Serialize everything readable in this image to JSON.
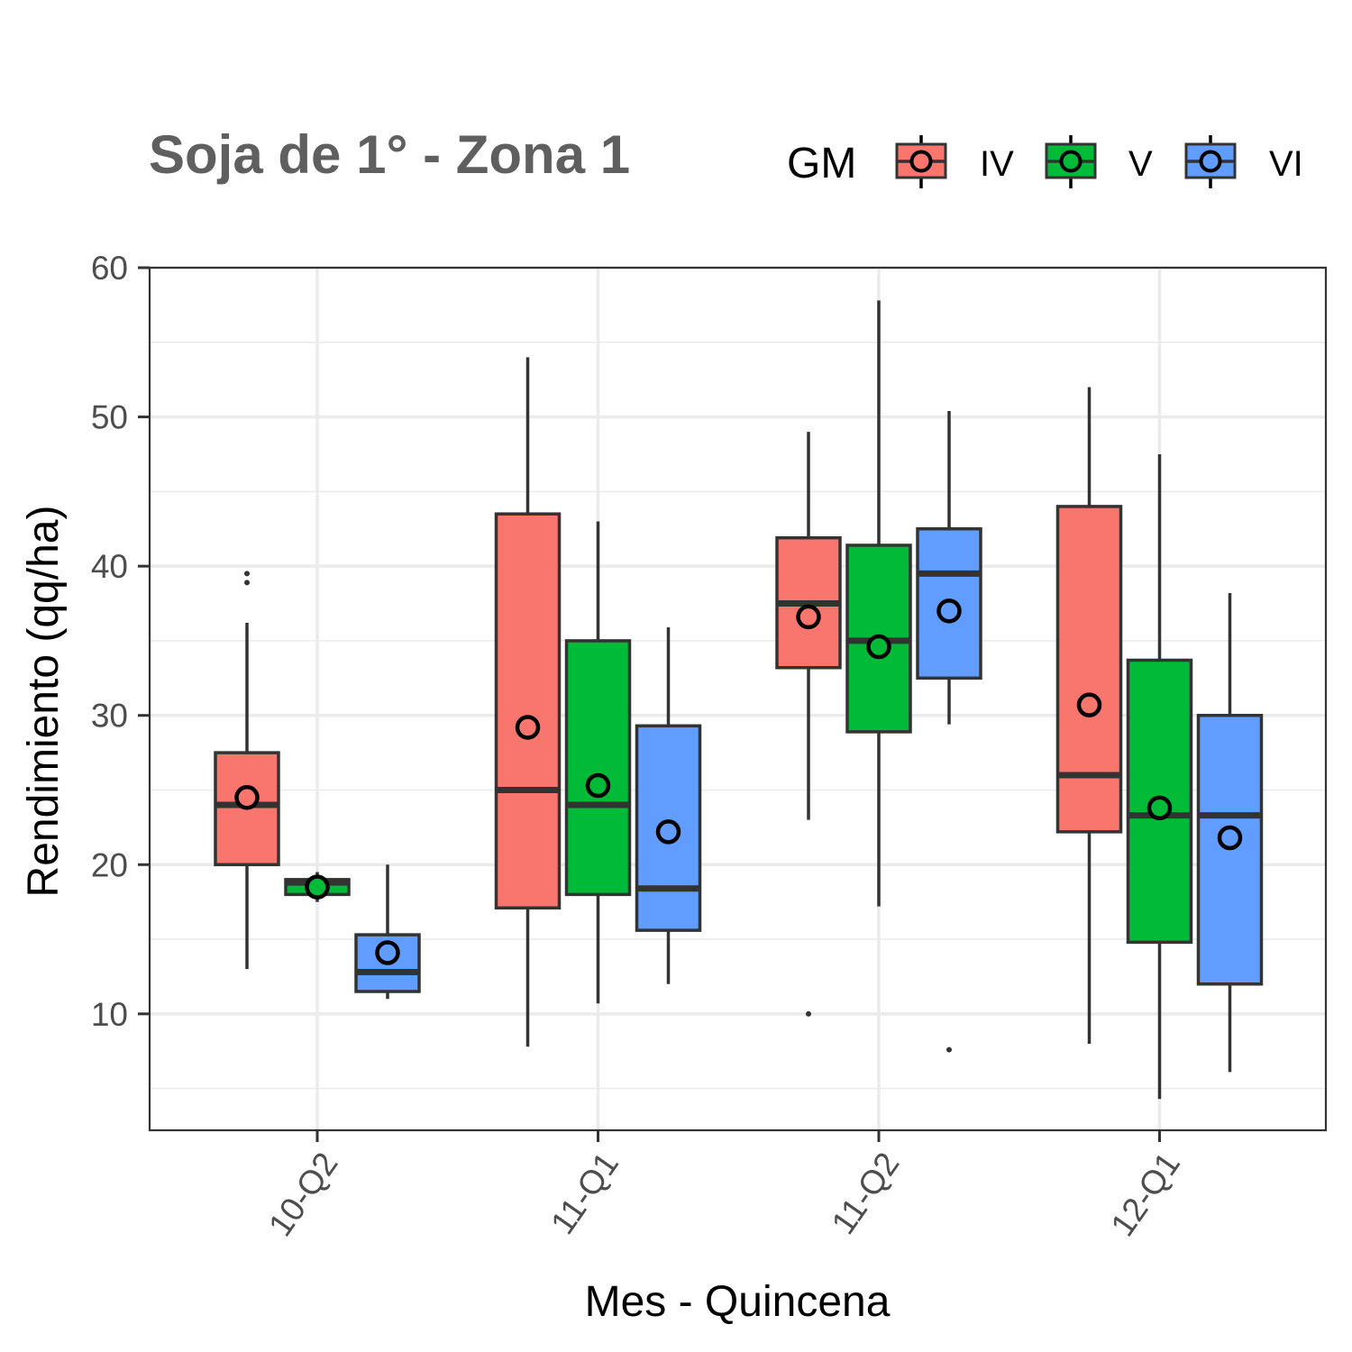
{
  "chart_data": {
    "type": "boxplot",
    "title": "Soja de 1° - Zona 1",
    "xlabel": "Mes - Quincena",
    "ylabel": "Rendimiento (qq/ha)",
    "ylim": [
      2.2,
      60
    ],
    "yticks": [
      10,
      20,
      30,
      40,
      50,
      60
    ],
    "grid": true,
    "legend_position": "top-right",
    "legend_title": "GM",
    "categories": [
      "10-Q2",
      "11-Q1",
      "11-Q2",
      "12-Q1"
    ],
    "series": [
      {
        "name": "IV",
        "color": "#F8766D",
        "boxes": [
          {
            "category": "10-Q2",
            "whisker_low": 13,
            "q1": 20,
            "median": 24,
            "q3": 27.5,
            "whisker_high": 36.2,
            "mean": 24.5,
            "outliers": [
              38.9,
              39.5
            ]
          },
          {
            "category": "11-Q1",
            "whisker_low": 7.8,
            "q1": 17.1,
            "median": 25,
            "q3": 43.5,
            "whisker_high": 54,
            "mean": 29.2,
            "outliers": []
          },
          {
            "category": "11-Q2",
            "whisker_low": 23,
            "q1": 33.2,
            "median": 37.5,
            "q3": 41.9,
            "whisker_high": 49,
            "mean": 36.6,
            "outliers": [
              10
            ]
          },
          {
            "category": "12-Q1",
            "whisker_low": 8,
            "q1": 22.2,
            "median": 26,
            "q3": 44,
            "whisker_high": 52,
            "mean": 30.7,
            "outliers": []
          }
        ]
      },
      {
        "name": "V",
        "color": "#00BA38",
        "boxes": [
          {
            "category": "10-Q2",
            "whisker_low": 17.5,
            "q1": 18,
            "median": 18.8,
            "q3": 19,
            "whisker_high": 19.5,
            "mean": 18.5,
            "outliers": []
          },
          {
            "category": "11-Q1",
            "whisker_low": 10.7,
            "q1": 18,
            "median": 24,
            "q3": 35,
            "whisker_high": 43,
            "mean": 25.3,
            "outliers": []
          },
          {
            "category": "11-Q2",
            "whisker_low": 17.2,
            "q1": 28.9,
            "median": 35,
            "q3": 41.4,
            "whisker_high": 57.8,
            "mean": 34.6,
            "outliers": []
          },
          {
            "category": "12-Q1",
            "whisker_low": 4.3,
            "q1": 14.8,
            "median": 23.3,
            "q3": 33.7,
            "whisker_high": 47.5,
            "mean": 23.8,
            "outliers": []
          }
        ]
      },
      {
        "name": "VI",
        "color": "#619CFF",
        "boxes": [
          {
            "category": "10-Q2",
            "whisker_low": 11,
            "q1": 11.5,
            "median": 12.8,
            "q3": 15.3,
            "whisker_high": 20,
            "mean": 14.1,
            "outliers": []
          },
          {
            "category": "11-Q1",
            "whisker_low": 12,
            "q1": 15.6,
            "median": 18.4,
            "q3": 29.3,
            "whisker_high": 35.9,
            "mean": 22.2,
            "outliers": []
          },
          {
            "category": "11-Q2",
            "whisker_low": 29.4,
            "q1": 32.5,
            "median": 39.5,
            "q3": 42.5,
            "whisker_high": 50.4,
            "mean": 37,
            "outliers": [
              7.6
            ]
          },
          {
            "category": "12-Q1",
            "whisker_low": 6.1,
            "q1": 12,
            "median": 23.3,
            "q3": 30,
            "whisker_high": 38.2,
            "mean": 21.8,
            "outliers": []
          }
        ]
      }
    ]
  }
}
